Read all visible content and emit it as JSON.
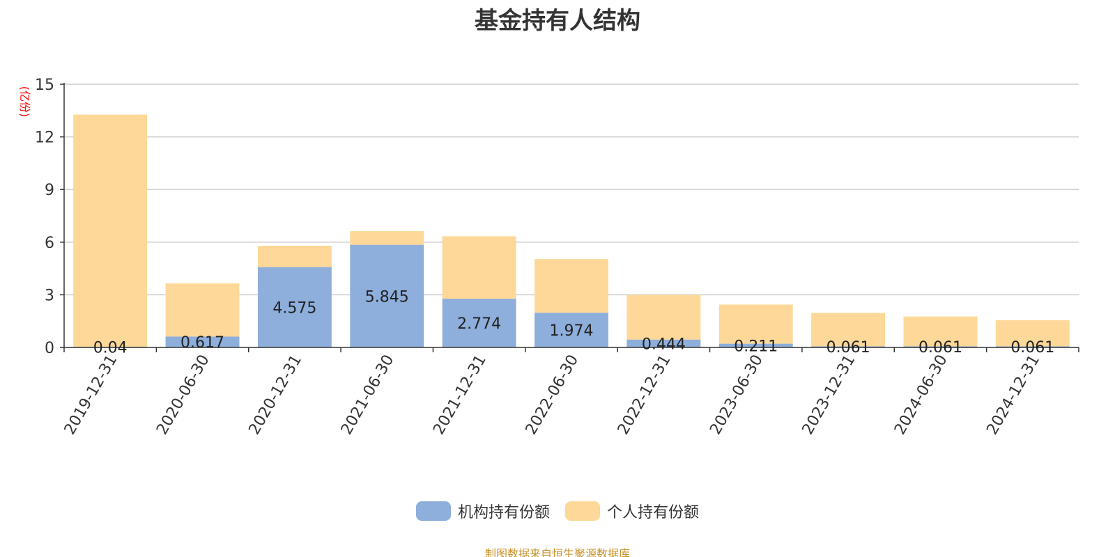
{
  "chart_data": {
    "type": "bar",
    "stacked": true,
    "title": "基金持有人结构",
    "ylabel": "(亿份)",
    "xlabel": "",
    "ylim": [
      0,
      15
    ],
    "yticks": [
      0,
      3,
      6,
      9,
      12,
      15
    ],
    "grid": true,
    "categories": [
      "2019-12-31",
      "2020-06-30",
      "2020-12-31",
      "2021-06-30",
      "2021-12-31",
      "2022-06-30",
      "2022-12-31",
      "2023-06-30",
      "2023-12-31",
      "2024-06-30",
      "2024-12-31"
    ],
    "series": [
      {
        "name": "机构持有份额",
        "color": "#8eaedb",
        "values": [
          0.04,
          0.617,
          4.575,
          5.845,
          2.774,
          1.974,
          0.444,
          0.211,
          0.061,
          0.061,
          0.061
        ],
        "labels": [
          "0.04",
          "0.617",
          "4.575",
          "5.845",
          "2.774",
          "1.974",
          "0.444",
          "0.211",
          "0.061",
          "0.061",
          "0.061"
        ]
      },
      {
        "name": "个人持有份额",
        "color": "#fdd898",
        "values": [
          13.23,
          3.03,
          1.22,
          0.78,
          3.56,
          3.06,
          2.55,
          2.23,
          1.91,
          1.7,
          1.49
        ]
      }
    ],
    "legend_position": "bottom-center"
  },
  "colors": {
    "axis": "#333333",
    "grid": "#cccccc",
    "ylabel": "#ff0000",
    "source": "#c8912a"
  },
  "source_note": "制图数据来自恒生聚源数据库"
}
